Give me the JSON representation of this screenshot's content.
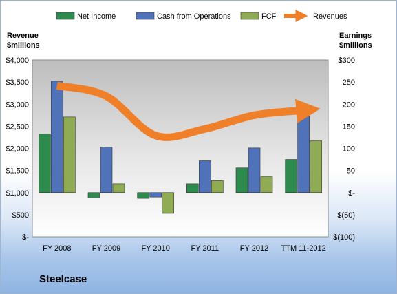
{
  "company": "Steelcase",
  "axes": {
    "left_title_line1": "Revenue",
    "left_title_line2": "$millions",
    "right_title_line1": "Earnings",
    "right_title_line2": "$millions"
  },
  "colors": {
    "net_income": "#2e8b4e",
    "cash_from_operations": "#4f72b8",
    "fcf": "#8fac54",
    "revenues": "#f07f2a"
  },
  "chart_data": {
    "type": "bar",
    "categories": [
      "FY 2008",
      "FY 2009",
      "FY 2010",
      "FY 2011",
      "FY 2012",
      "TTM 11-2012"
    ],
    "series": [
      {
        "name": "Net Income",
        "axis": "right",
        "values": [
          133,
          -12,
          -13,
          20,
          56,
          75
        ]
      },
      {
        "name": "Cash from Operations",
        "axis": "right",
        "values": [
          252,
          103,
          -10,
          72,
          101,
          183
        ]
      },
      {
        "name": "FCF",
        "axis": "right",
        "values": [
          171,
          20,
          -47,
          27,
          36,
          117
        ]
      },
      {
        "name": "Revenues",
        "type": "line",
        "axis": "left",
        "values": [
          3420,
          3180,
          2290,
          2440,
          2750,
          2860
        ]
      }
    ],
    "left_axis": {
      "ylim": [
        0,
        4000
      ],
      "ticks": [
        0,
        500,
        1000,
        1500,
        2000,
        2500,
        3000,
        3500,
        4000
      ],
      "tick_labels": [
        "$-",
        "$500",
        "$1,000",
        "$1,500",
        "$2,000",
        "$2,500",
        "$3,000",
        "$3,500",
        "$4,000"
      ]
    },
    "right_axis": {
      "ylim": [
        -100,
        300
      ],
      "ticks": [
        -100,
        -50,
        0,
        50,
        100,
        150,
        200,
        250,
        300
      ],
      "tick_labels": [
        "$(100)",
        "$(50)",
        "$-",
        "50",
        "100",
        "150",
        "200",
        "250",
        "$300"
      ]
    },
    "legend": {
      "placement": "top"
    },
    "grid": false
  }
}
